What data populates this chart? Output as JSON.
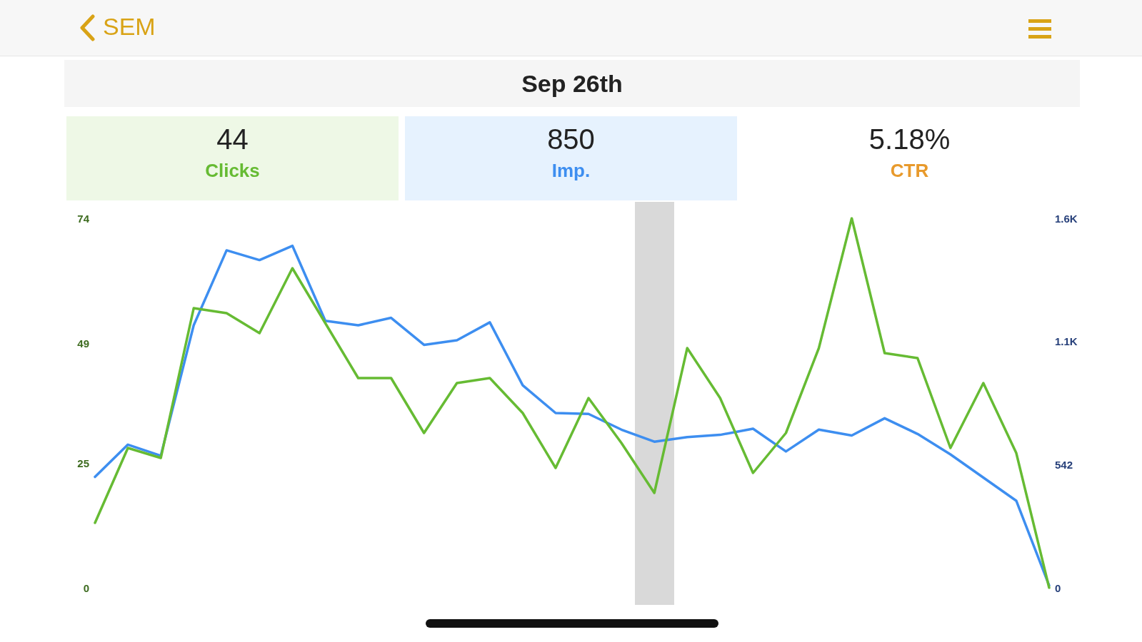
{
  "chart_data": {
    "type": "line",
    "title": "Sep 26th",
    "annotations": [
      "SEM",
      "44",
      "850",
      "5.18%",
      "CTR"
    ],
    "categories": [
      null,
      null,
      null,
      null,
      null,
      null,
      null,
      null,
      null,
      null,
      null,
      null,
      null,
      null,
      null,
      null,
      null,
      null,
      null,
      null,
      null,
      null,
      null,
      null,
      null,
      null,
      null,
      null,
      null,
      null
    ],
    "series": [
      {
        "name": "Clicks",
        "color": "#66bb33",
        "values": [
          13,
          28,
          26,
          56,
          55,
          51,
          64,
          53,
          42,
          42,
          31,
          41,
          42,
          35,
          24,
          38,
          29,
          19,
          48,
          38,
          23,
          31,
          48,
          74,
          47,
          46,
          28,
          41,
          27,
          0
        ]
      },
      {
        "name": "Imp.",
        "color": "#3d8ef0",
        "axis": "y2",
        "values": [
          488,
          630,
          581,
          1155,
          1485,
          1442,
          1505,
          1175,
          1155,
          1188,
          1069,
          1089,
          1168,
          891,
          769,
          765,
          696,
          643,
          663,
          673,
          700,
          600,
          696,
          670,
          746,
          677,
          587,
          485,
          383,
          10
        ]
      }
    ],
    "ylim": [
      0,
      74
    ],
    "yticks": [
      0,
      25,
      49,
      74
    ],
    "y2lim": [
      0,
      1626
    ],
    "y2ticks": [
      0,
      542,
      {
        "value": 1084,
        "label": "1.1K"
      },
      {
        "value": 1626,
        "label": "1.6K"
      }
    ],
    "tick_labels": "y",
    "grid": false,
    "legend": false,
    "marker": "none",
    "line_style": "solid"
  }
}
